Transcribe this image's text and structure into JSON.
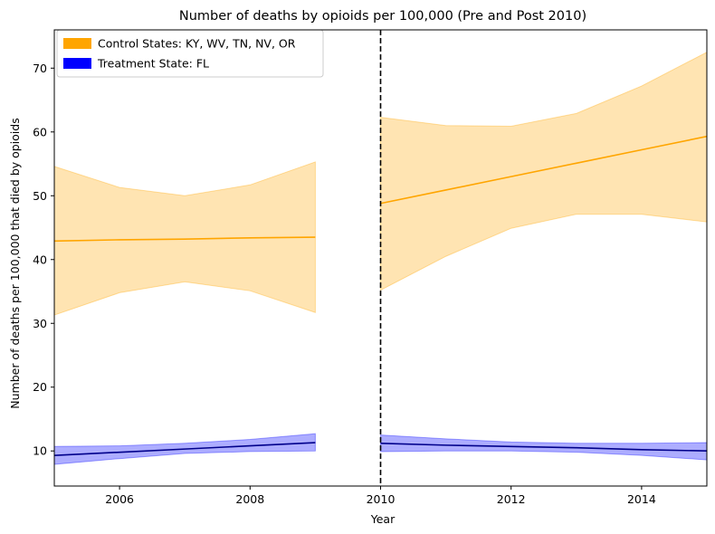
{
  "chart_data": {
    "type": "line",
    "title": "Number of deaths by opioids per 100,000 (Pre and Post 2010)",
    "xlabel": "Year",
    "ylabel": "Number of deaths per 100,000 that died by opioids",
    "xlim": [
      2005,
      2015
    ],
    "ylim": [
      4.5,
      76
    ],
    "xticks": [
      2006,
      2008,
      2010,
      2012,
      2014
    ],
    "yticks": [
      10,
      20,
      30,
      40,
      50,
      60,
      70
    ],
    "legend_position": "top-left",
    "cutoff": {
      "x": 2010,
      "style": "dashed",
      "color": "#000000"
    },
    "series": [
      {
        "name": "Control States: KY, WV, TN, NV, OR",
        "color": "#ffa500",
        "segments": [
          {
            "x": [
              2005,
              2006,
              2007,
              2008,
              2009
            ],
            "y": [
              42.9,
              43.1,
              43.2,
              43.4,
              43.5
            ],
            "lower": [
              31.3,
              34.8,
              36.5,
              35.1,
              31.7
            ],
            "upper": [
              54.6,
              51.3,
              50.0,
              51.7,
              55.3
            ]
          },
          {
            "x": [
              2010,
              2011,
              2012,
              2013,
              2014,
              2015
            ],
            "y": [
              48.8,
              50.9,
              53.0,
              55.1,
              57.2,
              59.3
            ],
            "lower": [
              35.2,
              40.5,
              44.9,
              47.1,
              47.1,
              45.9
            ],
            "upper": [
              62.3,
              61.0,
              60.9,
              62.9,
              67.2,
              72.5
            ]
          }
        ]
      },
      {
        "name": "Treatment State: FL",
        "color": "#0000ff",
        "segments": [
          {
            "x": [
              2005,
              2006,
              2007,
              2008,
              2009
            ],
            "y": [
              9.3,
              9.8,
              10.3,
              10.8,
              11.3
            ],
            "lower": [
              7.9,
              8.8,
              9.6,
              9.9,
              10.0
            ],
            "upper": [
              10.7,
              10.8,
              11.2,
              11.8,
              12.7
            ]
          },
          {
            "x": [
              2010,
              2011,
              2012,
              2013,
              2014,
              2015
            ],
            "y": [
              11.2,
              10.9,
              10.7,
              10.5,
              10.2,
              10.0
            ],
            "lower": [
              9.9,
              10.0,
              10.0,
              9.8,
              9.3,
              8.6
            ],
            "upper": [
              12.5,
              11.9,
              11.4,
              11.2,
              11.2,
              11.3
            ]
          }
        ]
      }
    ]
  }
}
